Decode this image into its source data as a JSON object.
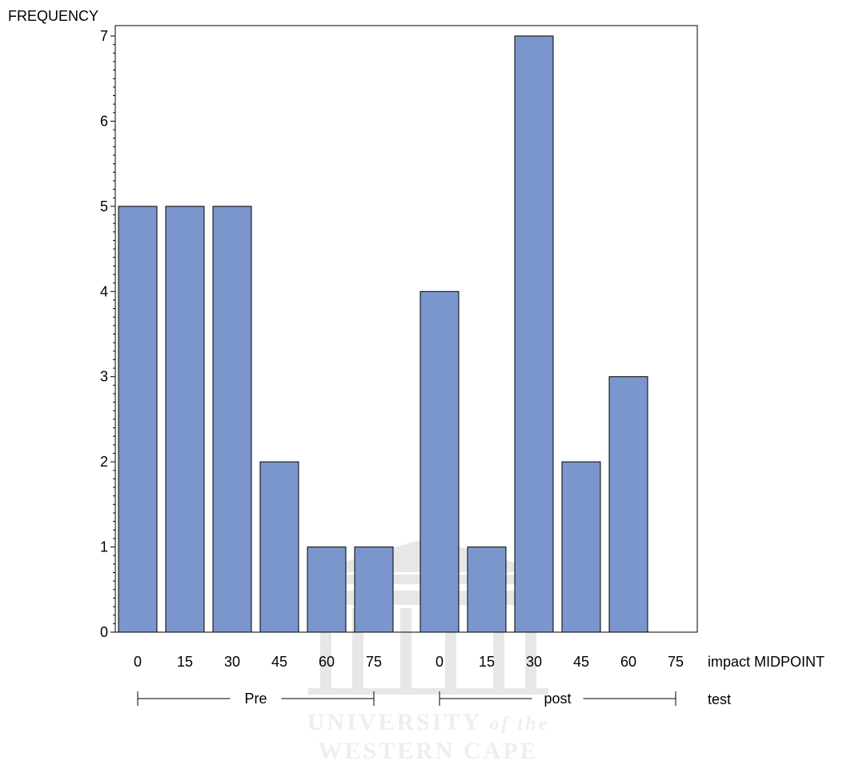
{
  "chart_data": {
    "type": "bar",
    "ylabel": "FREQUENCY",
    "xlabel": "impact MIDPOINT",
    "group_label": "test",
    "ylim": [
      0,
      7
    ],
    "yticks": [
      "0",
      "1",
      "2",
      "3",
      "4",
      "5",
      "6",
      "7"
    ],
    "grid": false,
    "legend": "none",
    "bar_color": "#7b96cc",
    "groups": [
      {
        "name": "Pre",
        "categories": [
          "0",
          "15",
          "30",
          "45",
          "60",
          "75"
        ],
        "values": [
          5,
          5,
          5,
          2,
          1,
          1
        ]
      },
      {
        "name": "post",
        "categories": [
          "0",
          "15",
          "30",
          "45",
          "60",
          "75"
        ],
        "values": [
          4,
          1,
          7,
          2,
          3,
          0
        ]
      }
    ]
  },
  "watermark": {
    "line1": "UNIVERSITY",
    "line1_suffix": "of the",
    "line2": "WESTERN CAPE",
    "color": "#d6d6d6"
  }
}
